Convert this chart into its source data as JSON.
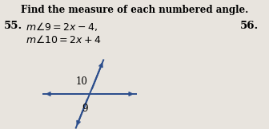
{
  "title": "Find the measure of each numbered angle.",
  "problem_55_label": "55.",
  "problem_55_line1": "m−9 = 2x − 4,",
  "problem_55_line2": "m−10 = 2x + 4",
  "problem_56_label": "56.",
  "line_color": "#2b4d8c",
  "label_color": "#000000",
  "bg_color": "#e8e4de",
  "label_10": "10",
  "label_9": "9",
  "fig_width": 3.36,
  "fig_height": 1.62,
  "dpi": 100
}
